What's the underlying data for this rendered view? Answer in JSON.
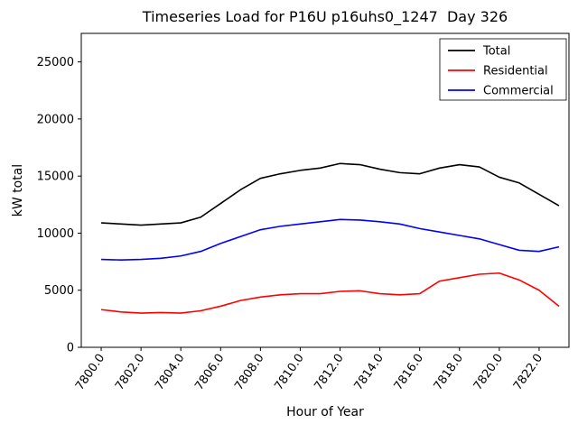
{
  "chart_data": {
    "type": "line",
    "title": "Timeseries Load for P16U p16uhs0_1247  Day 326",
    "xlabel": "Hour of Year",
    "ylabel": "kW total",
    "xlim": [
      7799.0,
      7823.5
    ],
    "ylim": [
      0,
      27500
    ],
    "xticks": [
      7800,
      7802,
      7804,
      7806,
      7808,
      7810,
      7812,
      7814,
      7816,
      7818,
      7820,
      7822
    ],
    "xtick_labels": [
      "7800.0",
      "7802.0",
      "7804.0",
      "7806.0",
      "7808.0",
      "7810.0",
      "7812.0",
      "7814.0",
      "7816.0",
      "7818.0",
      "7820.0",
      "7822.0"
    ],
    "yticks": [
      0,
      5000,
      10000,
      15000,
      20000,
      25000
    ],
    "ytick_labels": [
      "0",
      "5000",
      "10000",
      "15000",
      "20000",
      "25000"
    ],
    "grid": false,
    "legend_position": "upper right",
    "x": [
      7800,
      7801,
      7802,
      7803,
      7804,
      7805,
      7806,
      7807,
      7808,
      7809,
      7810,
      7811,
      7812,
      7813,
      7814,
      7815,
      7816,
      7817,
      7818,
      7819,
      7820,
      7821,
      7822,
      7823
    ],
    "series": [
      {
        "name": "Total",
        "color": "#000000",
        "values": [
          10900,
          10800,
          10700,
          10800,
          10900,
          11400,
          12600,
          13800,
          14800,
          15200,
          15500,
          15700,
          16100,
          16000,
          15600,
          15300,
          15200,
          15700,
          16000,
          15800,
          14900,
          14400,
          13400,
          12400
        ]
      },
      {
        "name": "Residential",
        "color": "#ff0000",
        "values": [
          3300,
          3100,
          3000,
          3050,
          3000,
          3200,
          3600,
          4100,
          4400,
          4600,
          4700,
          4700,
          4900,
          4950,
          4700,
          4600,
          4700,
          5800,
          6100,
          6400,
          6500,
          5900,
          5000,
          3600
        ]
      },
      {
        "name": "Commercial",
        "color": "#0000ff",
        "values": [
          7700,
          7650,
          7700,
          7800,
          8000,
          8400,
          9100,
          9700,
          10300,
          10600,
          10800,
          11000,
          11200,
          11150,
          11000,
          10800,
          10400,
          10100,
          9800,
          9500,
          9000,
          8500,
          8400,
          8800
        ]
      }
    ]
  }
}
